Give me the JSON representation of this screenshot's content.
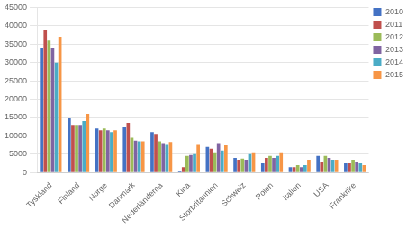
{
  "chart_data": {
    "type": "bar",
    "categories": [
      "Tyskland",
      "Finland",
      "Norge",
      "Danmark",
      "Nederländerna",
      "Kina",
      "Storbritannien",
      "Schweiz",
      "Polen",
      "Italien",
      "USA",
      "Frankrike"
    ],
    "series": [
      {
        "name": "2010",
        "color": "#4472C4",
        "values": [
          34000,
          15000,
          12000,
          12500,
          11000,
          500,
          7000,
          4000,
          2500,
          1500,
          4500,
          2500
        ]
      },
      {
        "name": "2011",
        "color": "#C0504D",
        "values": [
          39000,
          13000,
          11500,
          13500,
          10500,
          1500,
          6500,
          3500,
          4000,
          1500,
          3000,
          2500
        ]
      },
      {
        "name": "2012",
        "color": "#9BBB59",
        "values": [
          36000,
          13000,
          12000,
          9500,
          8500,
          4500,
          5500,
          3800,
          4500,
          2000,
          4500,
          3500
        ]
      },
      {
        "name": "2013",
        "color": "#8064A2",
        "values": [
          34000,
          13000,
          11500,
          8700,
          8000,
          4800,
          8000,
          3500,
          4000,
          1500,
          4000,
          3000
        ]
      },
      {
        "name": "2014",
        "color": "#4BACC6",
        "values": [
          30000,
          14000,
          11000,
          8500,
          7800,
          5000,
          6000,
          5000,
          4500,
          2000,
          3500,
          2500
        ]
      },
      {
        "name": "2015",
        "color": "#F79646",
        "values": [
          37000,
          16000,
          11500,
          8500,
          8300,
          7800,
          7500,
          5500,
          5500,
          3500,
          3500,
          2000
        ]
      }
    ],
    "ylim": [
      0,
      45000
    ],
    "yticks": [
      0,
      5000,
      10000,
      15000,
      20000,
      25000,
      30000,
      35000,
      40000,
      45000
    ],
    "grid": true,
    "legend": "upper right"
  }
}
